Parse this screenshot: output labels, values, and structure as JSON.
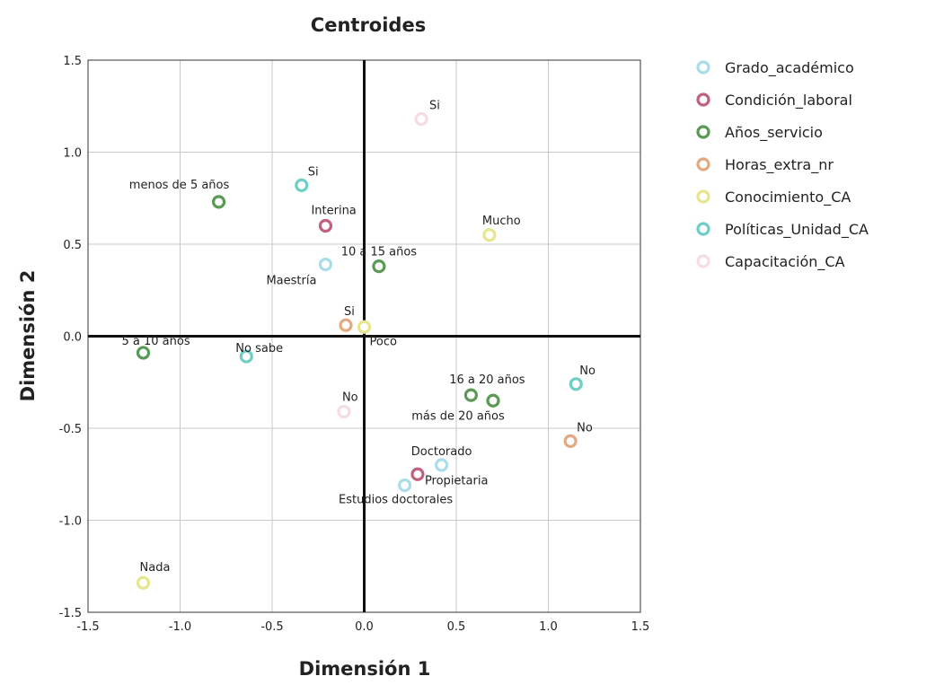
{
  "chart_data": {
    "type": "scatter",
    "title": "Centroides",
    "xlabel": "Dimensión 1",
    "ylabel": "Dimensión 2",
    "xlim": [
      -1.5,
      1.5
    ],
    "ylim": [
      -1.5,
      1.5
    ],
    "xticks": [
      "-1.5",
      "-1.0",
      "-0.5",
      "0.0",
      "0.5",
      "1.0",
      "1.5"
    ],
    "yticks": [
      "1.5",
      "1.0",
      "0.5",
      "0.0",
      "-0.5",
      "-1.0",
      "-1.5"
    ],
    "xtick_values": [
      -1.5,
      -1.0,
      -0.5,
      0.0,
      0.5,
      1.0,
      1.5
    ],
    "ytick_values": [
      1.5,
      1.0,
      0.5,
      0.0,
      -0.5,
      -1.0,
      -1.5
    ],
    "grid": true,
    "legend_position": "right",
    "series": [
      {
        "name": "Grado_académico",
        "color": "#a9dde9",
        "points": [
          {
            "label": "Maestría",
            "x": -0.21,
            "y": 0.39
          },
          {
            "label": "Doctorado",
            "x": 0.42,
            "y": -0.7
          },
          {
            "label": "Estudios doctorales",
            "x": 0.22,
            "y": -0.81
          }
        ]
      },
      {
        "name": "Condición_laboral",
        "color": "#c2617f",
        "points": [
          {
            "label": "Interina",
            "x": -0.21,
            "y": 0.6
          },
          {
            "label": "Propietaria",
            "x": 0.29,
            "y": -0.75
          }
        ]
      },
      {
        "name": "Años_servicio",
        "color": "#5a9a55",
        "points": [
          {
            "label": "menos de 5 años",
            "x": -0.79,
            "y": 0.73
          },
          {
            "label": "10 a 15 años",
            "x": 0.08,
            "y": 0.38
          },
          {
            "label": "5 a 10 años",
            "x": -1.2,
            "y": -0.09
          },
          {
            "label": "16 a 20 años",
            "x": 0.58,
            "y": -0.32
          },
          {
            "label": "más de 20 años",
            "x": 0.7,
            "y": -0.35
          }
        ]
      },
      {
        "name": "Horas_extra_nr",
        "color": "#e3a983",
        "points": [
          {
            "label": "Si",
            "x": -0.1,
            "y": 0.06
          },
          {
            "label": "No",
            "x": 1.12,
            "y": -0.57
          }
        ]
      },
      {
        "name": "Conocimiento_CA",
        "color": "#e8e58f",
        "points": [
          {
            "label": "Mucho",
            "x": 0.68,
            "y": 0.55
          },
          {
            "label": "Poco",
            "x": 0.0,
            "y": 0.05
          },
          {
            "label": "Nada",
            "x": -1.2,
            "y": -1.34
          }
        ]
      },
      {
        "name": "Políticas_Unidad_CA",
        "color": "#6fcfc6",
        "points": [
          {
            "label": "Si",
            "x": -0.34,
            "y": 0.82
          },
          {
            "label": "No sabe",
            "x": -0.64,
            "y": -0.11
          },
          {
            "label": "No",
            "x": 1.15,
            "y": -0.26
          }
        ]
      },
      {
        "name": "Capacitación_CA",
        "color": "#f5dce5",
        "points": [
          {
            "label": "Si",
            "x": 0.31,
            "y": 1.18
          },
          {
            "label": "No",
            "x": -0.11,
            "y": -0.41
          }
        ]
      }
    ]
  }
}
